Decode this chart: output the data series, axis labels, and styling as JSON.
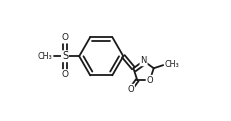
{
  "bg_color": "#ffffff",
  "line_color": "#1a1a1a",
  "lw": 1.3,
  "dbo": 0.013,
  "figsize": [
    2.31,
    1.21
  ],
  "dpi": 100,
  "xlim": [
    0.0,
    1.0
  ],
  "ylim": [
    0.08,
    0.92
  ]
}
